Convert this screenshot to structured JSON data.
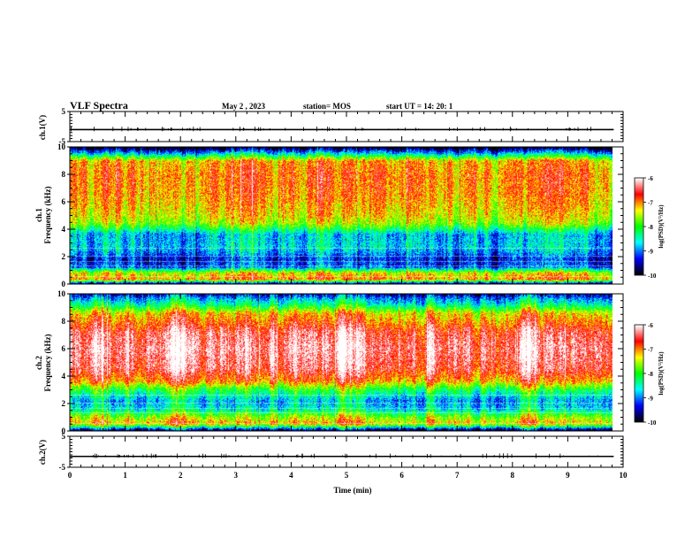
{
  "header": {
    "title": "VLF Spectra",
    "date": "May 2 , 2023",
    "station": "station= MOS",
    "start_ut": "start  UT  =   14: 20: 1"
  },
  "labels": {
    "ch1_voltage": "ch.1(V)",
    "ch1_freq_line1": "ch.1",
    "ch1_freq_line2": "Frequency (kHz)",
    "ch2_freq_line1": "ch.2",
    "ch2_freq_line2": "Frequency (kHz)",
    "ch2_voltage": "ch.2(V)",
    "time_axis": "Time  (min)",
    "colorbar": "log(PSD)(V²/Hz)"
  },
  "colors": {
    "scale": [
      "#000000",
      "#0000ff",
      "#00ffff",
      "#00ff00",
      "#ffff00",
      "#ff0000",
      "#ffffff"
    ],
    "frame": "#000000"
  },
  "chart_data": [
    {
      "type": "line",
      "name": "ch.1 waveform",
      "ylabel": "ch.1(V)",
      "ylim": [
        -5,
        5
      ],
      "yticks": [
        5,
        -5
      ],
      "xlim": [
        0,
        10
      ],
      "y_level": -1
    },
    {
      "type": "heatmap",
      "name": "ch.1 spectrogram",
      "ylabel": "Frequency (kHz)",
      "ylim": [
        0,
        10
      ],
      "yticks": [
        0,
        2,
        4,
        6,
        8,
        10
      ],
      "xlim": [
        0,
        9.83
      ],
      "colorbar": {
        "label": "log(PSD)(V²/Hz)",
        "range": [
          -10,
          -6
        ],
        "ticks": [
          -6,
          -7,
          -8,
          -9,
          -10
        ]
      },
      "freq_profile_log_psd": [
        [
          0,
          -9.6
        ],
        [
          0.3,
          -7.0
        ],
        [
          0.8,
          -7.4
        ],
        [
          1.2,
          -9.1
        ],
        [
          1.8,
          -9.3
        ],
        [
          2.6,
          -8.7
        ],
        [
          3.6,
          -8.8
        ],
        [
          4.4,
          -7.6
        ],
        [
          5.0,
          -7.3
        ],
        [
          6.5,
          -7.0
        ],
        [
          8.0,
          -6.9
        ],
        [
          9.0,
          -7.1
        ],
        [
          9.5,
          -8.6
        ],
        [
          10,
          -10.0
        ]
      ]
    },
    {
      "type": "heatmap",
      "name": "ch.2 spectrogram",
      "ylabel": "Frequency (kHz)",
      "ylim": [
        0,
        10
      ],
      "yticks": [
        0,
        2,
        4,
        6,
        8,
        10
      ],
      "xlim": [
        0,
        9.83
      ],
      "colorbar": {
        "label": "log(PSD)(V²/Hz)",
        "range": [
          -10,
          -6
        ],
        "ticks": [
          -6,
          -7,
          -8,
          -9,
          -10
        ]
      },
      "freq_profile_log_psd": [
        [
          0,
          -9.8
        ],
        [
          0.5,
          -7.1
        ],
        [
          1.0,
          -7.6
        ],
        [
          1.6,
          -8.6
        ],
        [
          2.2,
          -8.8
        ],
        [
          3.0,
          -8.0
        ],
        [
          3.6,
          -7.0
        ],
        [
          4.5,
          -6.4
        ],
        [
          6.0,
          -6.2
        ],
        [
          7.2,
          -6.4
        ],
        [
          8.0,
          -6.9
        ],
        [
          8.6,
          -7.2
        ],
        [
          9.2,
          -8.3
        ],
        [
          9.7,
          -8.9
        ],
        [
          10,
          -9.4
        ]
      ]
    },
    {
      "type": "line",
      "name": "ch.2 waveform",
      "ylabel": "ch.2(V)",
      "ylim": [
        -5,
        5
      ],
      "yticks": [
        5,
        -5
      ],
      "xlim": [
        0,
        10
      ],
      "y_level": -1.5,
      "xlabel": "Time  (min)",
      "xticks": [
        0,
        1,
        2,
        3,
        4,
        5,
        6,
        7,
        8,
        9,
        10
      ]
    }
  ]
}
